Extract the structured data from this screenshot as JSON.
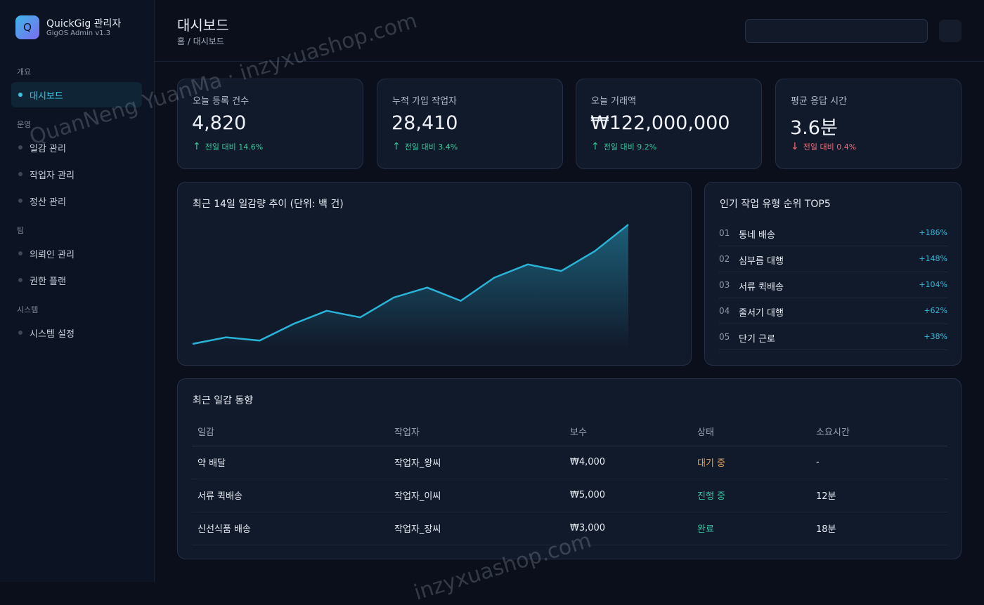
{
  "sidebar": {
    "logo": "Q",
    "brand": "QuickGig 관리자",
    "version": "GigOS Admin v1.3",
    "sections": [
      {
        "title": "개요",
        "items": [
          "대시보드"
        ]
      },
      {
        "title": "운영",
        "items": [
          "일감 관리",
          "작업자 관리",
          "정산 관리"
        ]
      },
      {
        "title": "팀",
        "items": [
          "의뢰인 관리",
          "권한 플랜"
        ]
      },
      {
        "title": "시스템",
        "items": [
          "시스템 설정"
        ]
      }
    ],
    "active": "대시보드"
  },
  "header": {
    "title": "대시보드",
    "breadcrumb": "홈 / 대시보드"
  },
  "stats": [
    {
      "label": "오늘 등록 건수",
      "value": "4,820",
      "change": "전일 대비 14.6%",
      "direction": "up"
    },
    {
      "label": "누적 가입 작업자",
      "value": "28,410",
      "change": "전일 대비 3.4%",
      "direction": "up"
    },
    {
      "label": "오늘 거래액",
      "value": "₩122,000,000",
      "change": "전일 대비 9.2%",
      "direction": "up"
    },
    {
      "label": "평균 응답 시간",
      "value": "3.6분",
      "change": "전일 대비 0.4%",
      "direction": "down"
    }
  ],
  "trend_chart": {
    "type": "line",
    "title": "최근 14일 일감량 추이 (단위: 백 건)",
    "color": "#2ab3d6",
    "values": [
      12,
      14,
      13,
      18,
      22,
      20,
      26,
      29,
      25,
      32,
      36,
      34,
      40,
      48
    ]
  },
  "ranking": {
    "title": "인기 작업 유형 순위 TOP5",
    "items": [
      {
        "rank": "01",
        "name": "동네 배송",
        "change": "+186%"
      },
      {
        "rank": "02",
        "name": "심부름 대행",
        "change": "+148%"
      },
      {
        "rank": "03",
        "name": "서류 퀵배송",
        "change": "+104%"
      },
      {
        "rank": "04",
        "name": "줄서기 대행",
        "change": "+62%"
      },
      {
        "rank": "05",
        "name": "단기 근로",
        "change": "+38%"
      }
    ]
  },
  "table": {
    "title": "최근 일감 동향",
    "columns": [
      "일감",
      "작업자",
      "보수",
      "상태",
      "소요시간"
    ],
    "rows": [
      [
        "약 배달",
        "작업자_왕씨",
        "₩4,000",
        "대기 중",
        "-"
      ],
      [
        "서류 퀵배송",
        "작업자_이씨",
        "₩5,000",
        "진행 중",
        "12분"
      ],
      [
        "신선식품 배송",
        "작업자_장씨",
        "₩3,000",
        "완료",
        "18분"
      ]
    ],
    "status_colors": [
      "#e2a65c",
      "#34c3a0",
      "#34c3a0"
    ]
  },
  "watermarks": [
    "QuanNeng YuanMa · inzyxuashop.com",
    "inzyxuashop.com"
  ]
}
